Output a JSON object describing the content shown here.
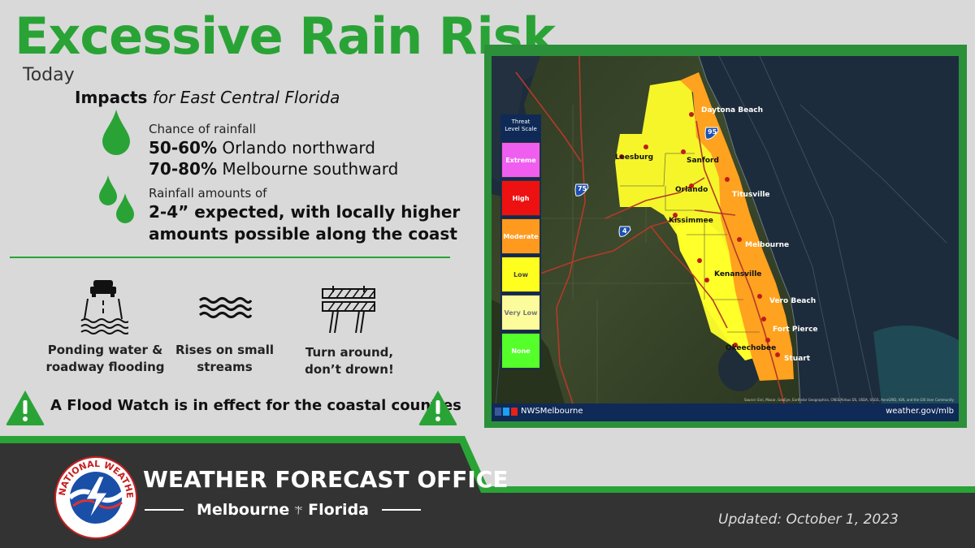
{
  "header": {
    "title": "Excessive Rain Risk",
    "subtitle": "Today",
    "impacts_bold": "Impacts",
    "impacts_italic": "for East Central Florida"
  },
  "rainfall_chance": {
    "label": "Chance of rainfall",
    "line1_bold": "50-60%",
    "line1_rest": " Orlando northward",
    "line2_bold": "70-80%",
    "line2_rest": " Melbourne southward"
  },
  "rainfall_amounts": {
    "label": "Rainfall amounts of",
    "line1": "2-4” expected, with locally higher",
    "line2": "amounts possible along the coast"
  },
  "impact_icons": [
    {
      "icon": "flooded-road-icon",
      "label_line1": "Ponding water &",
      "label_line2": "roadway flooding"
    },
    {
      "icon": "stream-waves-icon",
      "label_line1": "Rises on small",
      "label_line2": "streams"
    },
    {
      "icon": "barricade-icon",
      "label_line1": "Turn around,",
      "label_line2": "don’t drown!"
    }
  ],
  "flood_watch": "A Flood Watch is in effect for the coastal counties",
  "map": {
    "legend_title_line1": "Threat",
    "legend_title_line2": "Level Scale",
    "legend": [
      {
        "label": "Extreme",
        "color": "#f05ef0"
      },
      {
        "label": "High",
        "color": "#ee1111"
      },
      {
        "label": "Moderate",
        "color": "#ff9a1f"
      },
      {
        "label": "Low",
        "color": "#ffff1f"
      },
      {
        "label": "Very Low",
        "color": "#fcfc9c"
      },
      {
        "label": "None",
        "color": "#55ff2a"
      }
    ],
    "cities": [
      "Daytona Beach",
      "Leesburg",
      "Sanford",
      "Orlando",
      "Titusville",
      "Kissimmee",
      "Melbourne",
      "Kenansville",
      "Vero Beach",
      "Fort Pierce",
      "Okeechobee",
      "Stuart"
    ],
    "highways": [
      "95",
      "75",
      "4"
    ],
    "handle": "NWSMelbourne",
    "website": "weather.gov/mlb",
    "credit": "Source: Esri, Maxar, GeoEye, Earthstar Geographics, CNES/Airbus DS, USDA, USGS, AeroGRID, IGN, and the GIS User Community"
  },
  "footer": {
    "office": "WEATHER FORECAST OFFICE",
    "city": "Melbourne",
    "state": "Florida",
    "updated": "Updated: October 1, 2023",
    "seal_text": "NATIONAL WEATHER SERVICE"
  },
  "colors": {
    "accent_green": "#2aa336",
    "footer_dark": "#333333",
    "map_frame": "#2c8f3a",
    "footer_blue": "#0f2a57"
  }
}
